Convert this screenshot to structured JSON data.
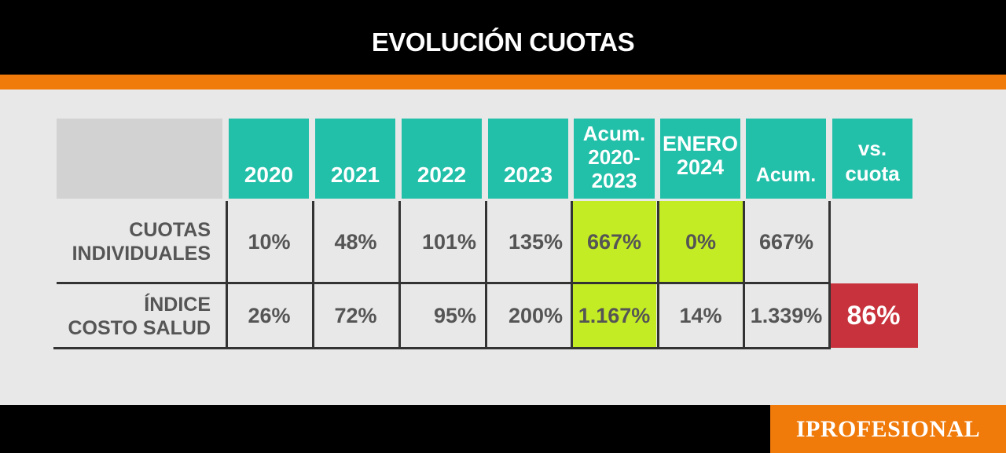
{
  "title": "EVOLUCIÓN CUOTAS",
  "brand": "IPROFESIONAL",
  "colors": {
    "header_teal": "#22bfa9",
    "highlight_lime": "#c4ec24",
    "highlight_red": "#c8323c",
    "accent_orange": "#f07a0a"
  },
  "chart_data": {
    "type": "table",
    "title": "EVOLUCIÓN CUOTAS",
    "columns": [
      {
        "lines": [
          "2020"
        ]
      },
      {
        "lines": [
          "2021"
        ]
      },
      {
        "lines": [
          "2022"
        ]
      },
      {
        "lines": [
          "2023"
        ]
      },
      {
        "lines": [
          "Acum.",
          "2020-",
          "2023"
        ]
      },
      {
        "lines": [
          "ENERO",
          "2024"
        ]
      },
      {
        "lines": [
          "Acum."
        ]
      },
      {
        "lines": [
          "vs.",
          "cuota"
        ]
      }
    ],
    "rows": [
      {
        "label_lines": [
          "CUOTAS",
          "INDIVIDUALES"
        ],
        "values": [
          "10%",
          "48%",
          "101%",
          "135%",
          "667%",
          "0%",
          "667%",
          ""
        ]
      },
      {
        "label_lines": [
          "ÍNDICE",
          "COSTO SALUD"
        ],
        "values": [
          "26%",
          "72%",
          "95%",
          "200%",
          "1.167%",
          "14%",
          "1.339%",
          "86%"
        ]
      }
    ]
  }
}
